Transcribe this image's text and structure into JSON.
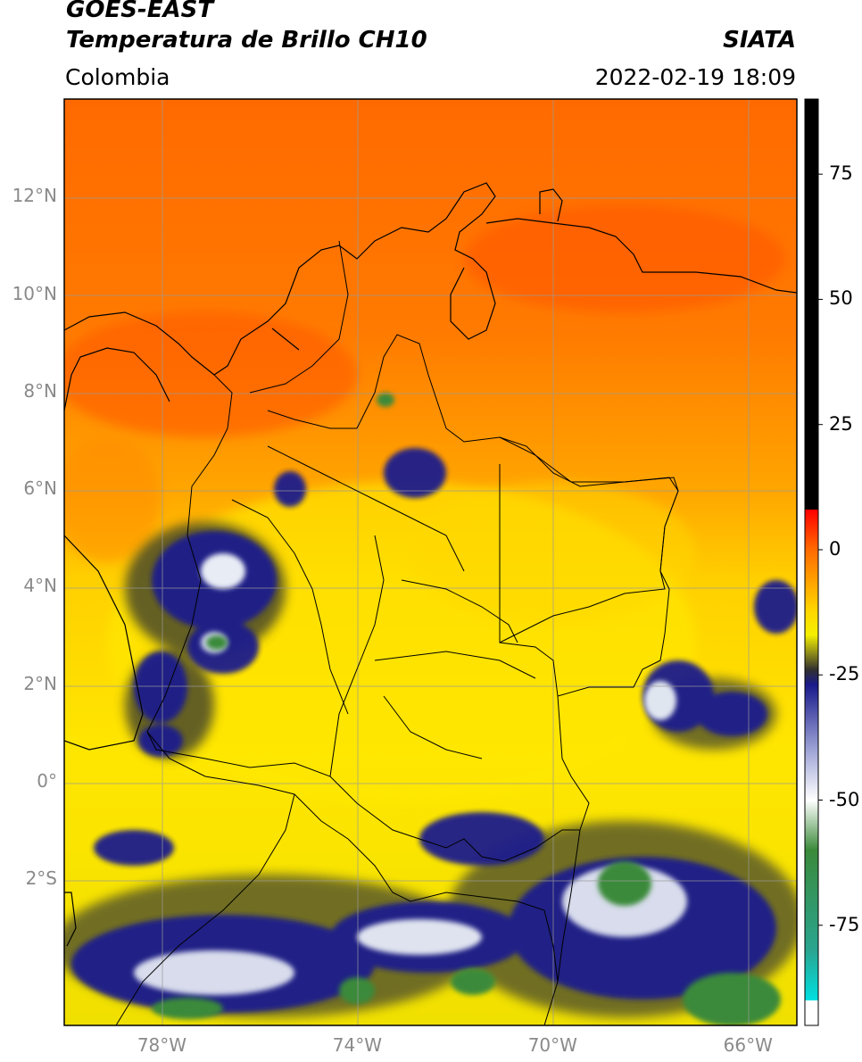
{
  "header": {
    "satellite": "GOES-EAST",
    "product": "Temperatura de Brillo CH10",
    "region": "Colombia",
    "agency": "SIATA",
    "datetime": "2022-02-19 18:09"
  },
  "map": {
    "lon_range": [
      -80,
      -65
    ],
    "lat_range": [
      -5,
      14
    ],
    "lat_ticks": [
      {
        "value": 12,
        "label": "12°N"
      },
      {
        "value": 10,
        "label": "10°N"
      },
      {
        "value": 8,
        "label": "8°N"
      },
      {
        "value": 6,
        "label": "6°N"
      },
      {
        "value": 4,
        "label": "4°N"
      },
      {
        "value": 2,
        "label": "2°N"
      },
      {
        "value": 0,
        "label": "0°"
      },
      {
        "value": -2,
        "label": "2°S"
      }
    ],
    "lon_ticks": [
      {
        "value": -78,
        "label": "78°W"
      },
      {
        "value": -74,
        "label": "74°W"
      },
      {
        "value": -70,
        "label": "70°W"
      },
      {
        "value": -66,
        "label": "66°W"
      }
    ],
    "grid": true
  },
  "colorbar": {
    "range": [
      -95,
      90
    ],
    "ticks": [
      {
        "value": 75,
        "label": "75"
      },
      {
        "value": 50,
        "label": "50"
      },
      {
        "value": 25,
        "label": "25"
      },
      {
        "value": 0,
        "label": "0"
      },
      {
        "value": -25,
        "label": "-25"
      },
      {
        "value": -50,
        "label": "-50"
      },
      {
        "value": -75,
        "label": "-75"
      }
    ],
    "stops": [
      {
        "value": 90,
        "color": "#000000"
      },
      {
        "value": 8,
        "color": "#000000"
      },
      {
        "value": 8,
        "color": "#ff0000"
      },
      {
        "value": 0,
        "color": "#ff6a00"
      },
      {
        "value": -12,
        "color": "#ffd500"
      },
      {
        "value": -17,
        "color": "#f5f000"
      },
      {
        "value": -24,
        "color": "#303030"
      },
      {
        "value": -27,
        "color": "#1a1a8c"
      },
      {
        "value": -40,
        "color": "#9ea4d6"
      },
      {
        "value": -50,
        "color": "#ffffff"
      },
      {
        "value": -60,
        "color": "#3a8a3a"
      },
      {
        "value": -80,
        "color": "#2aa590"
      },
      {
        "value": -90,
        "color": "#00e0e0"
      },
      {
        "value": -90,
        "color": "#ffffff"
      },
      {
        "value": -95,
        "color": "#ffffff"
      }
    ]
  }
}
